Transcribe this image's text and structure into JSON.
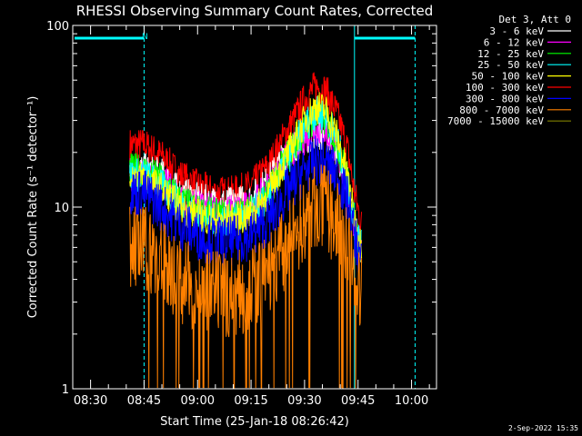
{
  "chart_data": {
    "type": "line",
    "title": "RHESSI Observing Summary Count Rates, Corrected",
    "xlabel": "Start Time (25-Jan-18 08:26:42)",
    "ylabel": "Corrected Count Rate (s⁻¹ detector⁻¹)",
    "yscale": "log",
    "ylim": [
      1,
      100
    ],
    "yticks": [
      "1",
      "10",
      "100"
    ],
    "xlim": [
      "08:25",
      "10:07"
    ],
    "xticks": [
      "08:30",
      "08:45",
      "09:00",
      "09:15",
      "09:30",
      "09:45",
      "10:00"
    ],
    "grid": false,
    "legend_position": "right",
    "legend_title": "Det 3, Att 0",
    "annotations": {
      "night_marker": "N",
      "night_start": "08:45",
      "night_end": "09:44",
      "saa_boundaries": [
        "08:25",
        "09:44",
        "10:01"
      ]
    },
    "series": [
      {
        "name": "3 - 6 keV",
        "color": "#ffffff",
        "x": [
          "08:41",
          "08:45",
          "08:50",
          "08:55",
          "09:00",
          "09:05",
          "09:10",
          "09:15",
          "09:20",
          "09:25",
          "09:30",
          "09:33",
          "09:36",
          "09:39",
          "09:42",
          "09:44",
          "09:46"
        ],
        "y": [
          16,
          16,
          15,
          12,
          11,
          10.5,
          10.5,
          11,
          14,
          20,
          24,
          26,
          25,
          20,
          14,
          8,
          6
        ]
      },
      {
        "name": "6 - 12 keV",
        "color": "#ff00ff",
        "x": [
          "08:41",
          "08:45",
          "08:50",
          "08:55",
          "09:00",
          "09:05",
          "09:10",
          "09:15",
          "09:20",
          "09:25",
          "09:30",
          "09:33",
          "09:36",
          "09:39",
          "09:42",
          "09:44",
          "09:46"
        ],
        "y": [
          15,
          15,
          14,
          11,
          10,
          9.5,
          9.5,
          10,
          13,
          19,
          24,
          27,
          26,
          20,
          13,
          8,
          6
        ]
      },
      {
        "name": "12 - 25 keV",
        "color": "#00ff00",
        "x": [
          "08:41",
          "08:45",
          "08:50",
          "08:55",
          "09:00",
          "09:05",
          "09:10",
          "09:15",
          "09:20",
          "09:25",
          "09:30",
          "09:33",
          "09:36",
          "09:39",
          "09:42",
          "09:44",
          "09:46"
        ],
        "y": [
          16,
          16,
          14,
          11,
          9.5,
          9,
          9,
          9.5,
          12,
          19,
          27,
          31,
          30,
          23,
          14,
          8,
          6
        ]
      },
      {
        "name": "25 - 50 keV",
        "color": "#00ffff",
        "x": [
          "08:41",
          "08:45",
          "08:50",
          "08:55",
          "09:00",
          "09:05",
          "09:10",
          "09:15",
          "09:20",
          "09:25",
          "09:30",
          "09:33",
          "09:36",
          "09:39",
          "09:42",
          "09:44",
          "09:46"
        ],
        "y": [
          15,
          15,
          13,
          10.5,
          9,
          8.5,
          8.5,
          9,
          11.5,
          18,
          28,
          33,
          32,
          24,
          14,
          8,
          6
        ]
      },
      {
        "name": "50 - 100 keV",
        "color": "#ffff00",
        "x": [
          "08:41",
          "08:45",
          "08:50",
          "08:55",
          "09:00",
          "09:05",
          "09:10",
          "09:15",
          "09:20",
          "09:25",
          "09:30",
          "09:33",
          "09:36",
          "09:39",
          "09:42",
          "09:44",
          "09:46"
        ],
        "y": [
          15,
          14.5,
          12.5,
          10,
          9,
          8.5,
          8.5,
          9,
          12,
          19,
          30,
          36,
          34,
          25,
          15,
          8.5,
          6
        ]
      },
      {
        "name": "100 - 300 keV",
        "color": "#ff0000",
        "x": [
          "08:41",
          "08:45",
          "08:50",
          "08:55",
          "09:00",
          "09:05",
          "09:10",
          "09:15",
          "09:20",
          "09:25",
          "09:30",
          "09:33",
          "09:36",
          "09:39",
          "09:42",
          "09:44",
          "09:46"
        ],
        "y": [
          22,
          22,
          19,
          15,
          13,
          12,
          12,
          13,
          17,
          26,
          39,
          46,
          44,
          33,
          21,
          12,
          8
        ]
      },
      {
        "name": "300 - 800 keV",
        "color": "#0000ff",
        "x": [
          "08:41",
          "08:45",
          "08:50",
          "08:55",
          "09:00",
          "09:05",
          "09:10",
          "09:15",
          "09:20",
          "09:25",
          "09:30",
          "09:33",
          "09:36",
          "09:39",
          "09:42",
          "09:44",
          "09:46"
        ],
        "y": [
          12,
          12,
          10,
          8,
          7,
          6.5,
          6.5,
          7,
          8.5,
          12,
          16,
          18,
          17.5,
          15,
          11,
          7,
          5
        ]
      },
      {
        "name": "800 - 7000 keV",
        "color": "#ff8000",
        "x": [
          "08:41",
          "08:45",
          "08:50",
          "08:55",
          "09:00",
          "09:05",
          "09:10",
          "09:15",
          "09:20",
          "09:25",
          "09:30",
          "09:33",
          "09:36",
          "09:39",
          "09:42",
          "09:44",
          "09:46"
        ],
        "y": [
          6,
          6,
          5,
          4,
          3.5,
          3.3,
          3.3,
          3.5,
          4.3,
          6,
          8.5,
          10,
          9.8,
          8,
          6,
          4.2,
          3.2
        ]
      },
      {
        "name": "7000 - 15000 keV",
        "color": "#808000",
        "x": [],
        "y": []
      }
    ]
  },
  "timestamp": "2-Sep-2022 15:35"
}
